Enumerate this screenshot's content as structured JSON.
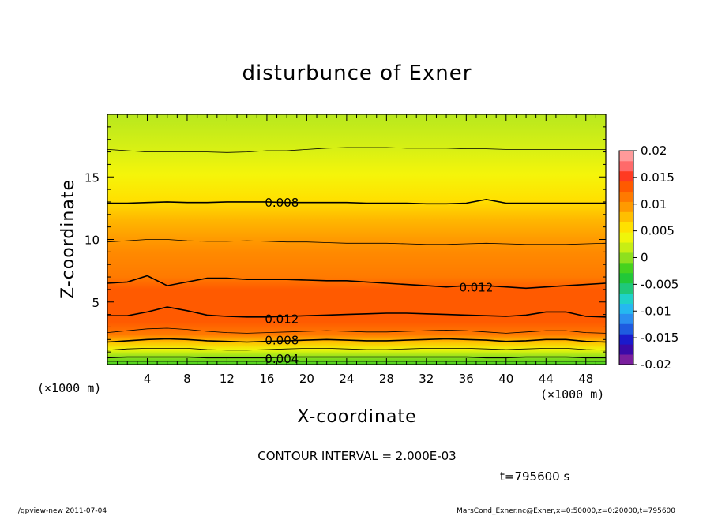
{
  "chart_data": {
    "type": "heatmap",
    "subtype": "filled-contour",
    "title": "disturbunce of Exner",
    "xlabel": "X-coordinate",
    "ylabel": "Z-coordinate",
    "x_unit": "(×1000 m)",
    "y_unit": "(×1000 m)",
    "xlim": [
      0,
      50
    ],
    "ylim": [
      0,
      20
    ],
    "x_ticks": [
      4,
      8,
      12,
      16,
      20,
      24,
      28,
      32,
      36,
      40,
      44,
      48
    ],
    "y_ticks": [
      5,
      10,
      15
    ],
    "grid": false,
    "colorbar": {
      "position": "right",
      "min": -0.02,
      "max": 0.02,
      "tick_labels": [
        "0.02",
        "0.015",
        "0.01",
        "0.005",
        "0",
        "-0.005",
        "-0.01",
        "-0.015",
        "-0.02"
      ],
      "tick_values": [
        0.02,
        0.015,
        0.01,
        0.005,
        0,
        -0.005,
        -0.01,
        -0.015,
        -0.02
      ],
      "colors": [
        "#7a1f9e",
        "#3a0aa8",
        "#1a1acc",
        "#1e5be0",
        "#2a8ef0",
        "#25b8f0",
        "#1fd2c8",
        "#1fc87a",
        "#22c838",
        "#46d21e",
        "#8ee01e",
        "#c8ee14",
        "#f0f50a",
        "#ffe100",
        "#ffbf00",
        "#ff9a00",
        "#ff7a00",
        "#ff5a00",
        "#ff3a22",
        "#ff6a6a",
        "#ff9a9a"
      ]
    },
    "contour_interval": 0.002,
    "contour_interval_text": "CONTOUR INTERVAL = 2.000E-03",
    "contour_labels": [
      {
        "text": "0.004",
        "x": 17.5,
        "z": 0.5
      },
      {
        "text": "0.008",
        "x": 17.5,
        "z": 2.0
      },
      {
        "text": "0.012",
        "x": 17.5,
        "z": 3.7
      },
      {
        "text": "0.012",
        "x": 37.0,
        "z": 6.2
      },
      {
        "text": "0.008",
        "x": 17.5,
        "z": 13.0
      }
    ],
    "contour_lines": [
      {
        "level": 0.002,
        "heavy": false,
        "z": [
          0.25,
          0.25,
          0.25,
          0.25,
          0.25,
          0.25,
          0.25,
          0.25,
          0.25,
          0.25,
          0.25,
          0.25,
          0.25,
          0.25,
          0.25,
          0.25,
          0.25,
          0.25,
          0.25,
          0.25,
          0.25,
          0.25,
          0.25,
          0.25,
          0.25,
          0.25
        ]
      },
      {
        "level": 0.004,
        "heavy": true,
        "z": [
          0.55,
          0.6,
          0.6,
          0.6,
          0.6,
          0.55,
          0.55,
          0.55,
          0.55,
          0.6,
          0.6,
          0.6,
          0.6,
          0.6,
          0.6,
          0.6,
          0.6,
          0.6,
          0.6,
          0.55,
          0.55,
          0.6,
          0.6,
          0.6,
          0.55,
          0.55
        ]
      },
      {
        "level": 0.006,
        "heavy": false,
        "z": [
          1.15,
          1.25,
          1.3,
          1.3,
          1.3,
          1.2,
          1.15,
          1.15,
          1.2,
          1.25,
          1.3,
          1.3,
          1.25,
          1.2,
          1.2,
          1.25,
          1.3,
          1.3,
          1.3,
          1.25,
          1.2,
          1.25,
          1.3,
          1.3,
          1.2,
          1.15
        ]
      },
      {
        "level": 0.008,
        "heavy": true,
        "z": [
          1.8,
          1.9,
          2.0,
          2.05,
          2.0,
          1.9,
          1.85,
          1.8,
          1.85,
          1.9,
          1.95,
          2.0,
          1.95,
          1.9,
          1.9,
          1.95,
          2.0,
          2.05,
          2.0,
          1.95,
          1.85,
          1.9,
          2.0,
          2.0,
          1.85,
          1.8
        ]
      },
      {
        "level": 0.01,
        "heavy": false,
        "z": [
          2.55,
          2.7,
          2.85,
          2.9,
          2.8,
          2.65,
          2.55,
          2.5,
          2.55,
          2.6,
          2.65,
          2.7,
          2.65,
          2.6,
          2.6,
          2.65,
          2.7,
          2.75,
          2.7,
          2.6,
          2.5,
          2.6,
          2.7,
          2.7,
          2.55,
          2.5
        ]
      },
      {
        "level": 0.012,
        "heavy": true,
        "z": [
          3.9,
          3.9,
          4.2,
          4.6,
          4.3,
          3.95,
          3.85,
          3.8,
          3.8,
          3.85,
          3.9,
          3.95,
          4.0,
          4.05,
          4.1,
          4.1,
          4.05,
          4.0,
          3.95,
          3.9,
          3.85,
          3.95,
          4.2,
          4.2,
          3.85,
          3.8
        ]
      },
      {
        "level": 0.012,
        "heavy": true,
        "z": [
          6.5,
          6.6,
          7.1,
          6.3,
          6.6,
          6.9,
          6.9,
          6.8,
          6.8,
          6.8,
          6.75,
          6.7,
          6.7,
          6.6,
          6.5,
          6.4,
          6.3,
          6.2,
          6.3,
          6.3,
          6.2,
          6.1,
          6.2,
          6.3,
          6.4,
          6.5
        ]
      },
      {
        "level": 0.01,
        "heavy": false,
        "z": [
          9.8,
          9.9,
          10.0,
          10.0,
          9.9,
          9.85,
          9.85,
          9.9,
          9.85,
          9.8,
          9.8,
          9.75,
          9.7,
          9.7,
          9.7,
          9.65,
          9.6,
          9.6,
          9.65,
          9.7,
          9.65,
          9.6,
          9.6,
          9.6,
          9.65,
          9.7
        ]
      },
      {
        "level": 0.008,
        "heavy": true,
        "z": [
          12.9,
          12.9,
          12.95,
          13.0,
          12.95,
          12.95,
          13.0,
          13.0,
          13.0,
          12.95,
          12.95,
          12.95,
          12.95,
          12.9,
          12.9,
          12.9,
          12.85,
          12.85,
          12.9,
          13.2,
          12.9,
          12.9,
          12.9,
          12.9,
          12.9,
          12.9
        ]
      },
      {
        "level": 0.006,
        "heavy": false,
        "z": [
          17.2,
          17.1,
          17.0,
          17.0,
          17.0,
          17.0,
          16.95,
          17.0,
          17.1,
          17.1,
          17.2,
          17.3,
          17.35,
          17.35,
          17.35,
          17.3,
          17.3,
          17.3,
          17.25,
          17.25,
          17.2,
          17.2,
          17.2,
          17.2,
          17.2,
          17.2
        ]
      }
    ]
  },
  "time_label": "t=795600 s",
  "footer_left": "./gpview-new  2011-07-04",
  "footer_right": "MarsCond_Exner.nc@Exner,x=0:50000,z=0:20000,t=795600"
}
